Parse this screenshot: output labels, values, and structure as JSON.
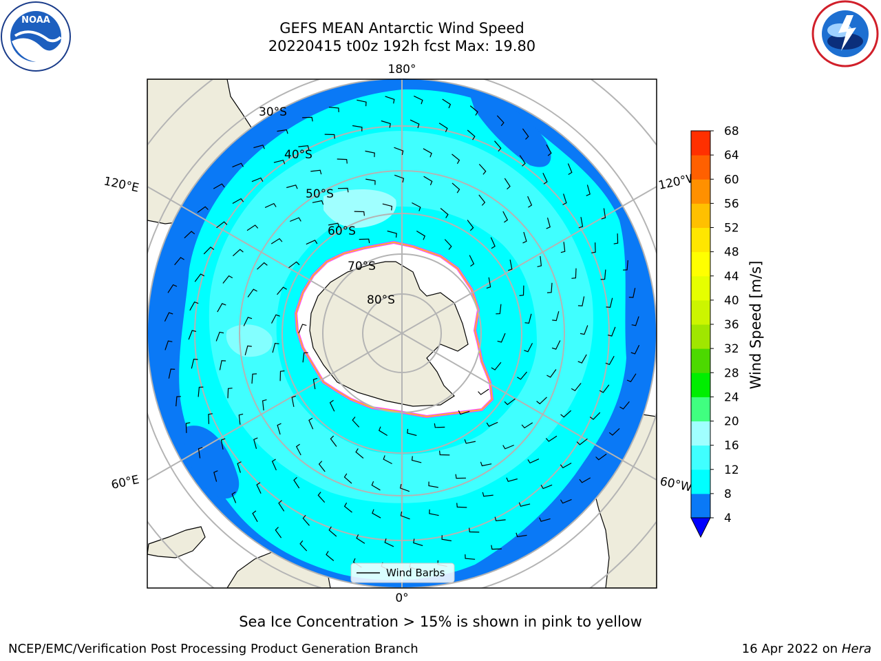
{
  "header": {
    "title_line1": "GEFS MEAN Antarctic Wind Speed",
    "title_line2": "20220415 t00z 192h fcst   Max: 19.80"
  },
  "logos": {
    "left": "NOAA",
    "right": "NATIONAL WEATHER SERVICE"
  },
  "map": {
    "projection": "south-polar-stereographic",
    "longitude_labels": {
      "top": "180°",
      "bottom": "0°",
      "left_upper": "120°E",
      "left_lower": "60°E",
      "right_upper": "120°W",
      "right_lower": "60°W"
    },
    "latitude_labels": [
      "30°S",
      "40°S",
      "50°S",
      "60°S",
      "70°S",
      "80°S"
    ],
    "legend_label": "Wind Barbs",
    "colors": {
      "land": "#eeecdc",
      "band_4_8": "#0a79f6",
      "band_8_12": "#00ffff",
      "band_12_16": "#40ffff",
      "band_16_20": "#a0ffff",
      "sea_ice_edge_pink": "#ff40ff",
      "sea_ice_edge_yellow": "#ffd000",
      "graticule": "#b4b4b4"
    }
  },
  "colorbar": {
    "label": "Wind Speed [m/s]",
    "ticks": [
      "4",
      "8",
      "12",
      "16",
      "20",
      "24",
      "28",
      "32",
      "36",
      "40",
      "44",
      "48",
      "52",
      "56",
      "60",
      "64",
      "68"
    ],
    "colors": [
      "#0a79f6",
      "#00ffff",
      "#40ffff",
      "#a0ffff",
      "#40ff80",
      "#00ee00",
      "#4cd900",
      "#a0e600",
      "#ccf500",
      "#e6ff00",
      "#ffff00",
      "#ffe600",
      "#ffc000",
      "#ff9000",
      "#ff6000",
      "#ff3000",
      "#ff0000"
    ],
    "under_color": "#0000ff"
  },
  "subtitle": "Sea Ice Concentration > 15% is shown in pink to yellow",
  "footer": {
    "left": "NCEP/EMC/Verification Post Processing Product Generation Branch",
    "right_date": "16 Apr 2022 on ",
    "right_host": "Hera"
  }
}
